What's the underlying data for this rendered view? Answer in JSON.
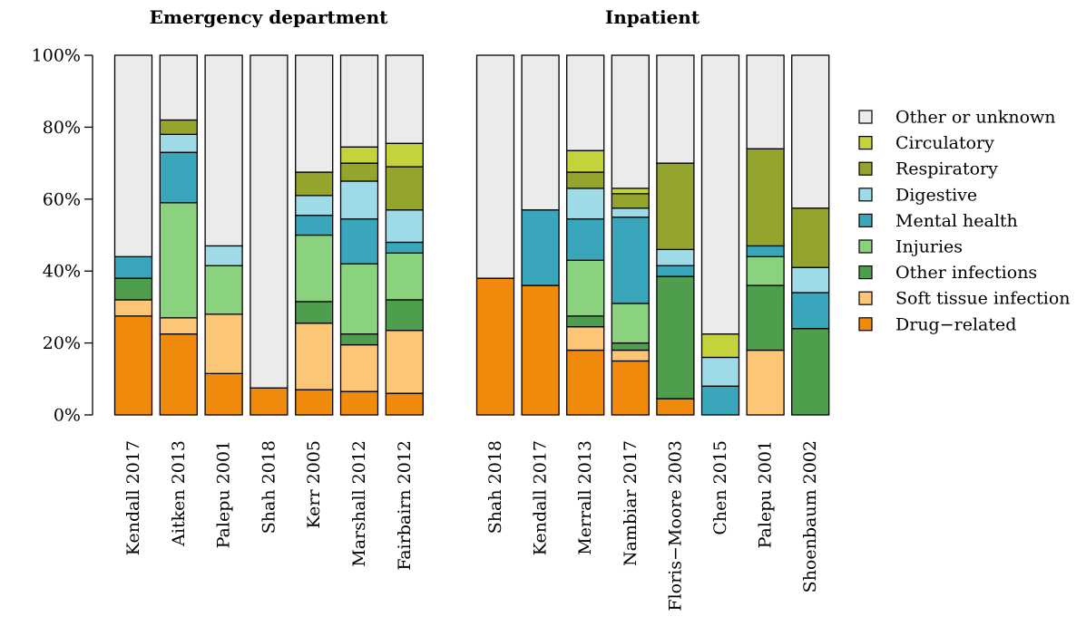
{
  "chart_data": [
    {
      "type": "bar",
      "stacked": true,
      "title": "Emergency department",
      "categories": [
        "Kendall 2017",
        "Aitken 2013",
        "Palepu 2001",
        "Shah 2018",
        "Kerr 2005",
        "Marshall 2012",
        "Fairbairn 2012"
      ],
      "series": [
        {
          "name": "Drug−related",
          "values": [
            27.5,
            22.5,
            11.5,
            7.5,
            7,
            6.5,
            6
          ]
        },
        {
          "name": "Soft tissue infection",
          "values": [
            4.5,
            4.5,
            16.5,
            0,
            18.5,
            13,
            17.5
          ]
        },
        {
          "name": "Other infections",
          "values": [
            6,
            0,
            0,
            0,
            6,
            3,
            8.5
          ]
        },
        {
          "name": "Injuries",
          "values": [
            0,
            32,
            13.5,
            0,
            18.5,
            19.5,
            13
          ]
        },
        {
          "name": "Mental health",
          "values": [
            6,
            14,
            0,
            0,
            5.5,
            12.5,
            3
          ]
        },
        {
          "name": "Digestive",
          "values": [
            0,
            5,
            5.5,
            0,
            5.5,
            10.5,
            9
          ]
        },
        {
          "name": "Respiratory",
          "values": [
            0,
            4,
            0,
            0,
            6.5,
            5,
            12
          ]
        },
        {
          "name": "Circulatory",
          "values": [
            0,
            0,
            0,
            0,
            0,
            4.5,
            6.5
          ]
        },
        {
          "name": "Other or unknown",
          "values": [
            56,
            18,
            53,
            92.5,
            32.5,
            25.5,
            24.5
          ]
        }
      ],
      "ylim": [
        0,
        100
      ],
      "yticks": [
        "0%",
        "20%",
        "40%",
        "60%",
        "80%",
        "100%"
      ]
    },
    {
      "type": "bar",
      "stacked": true,
      "title": "Inpatient",
      "categories": [
        "Shah 2018",
        "Kendall 2017",
        "Merrall 2013",
        "Nambiar 2017",
        "Floris−Moore 2003",
        "Chen 2015",
        "Palepu 2001",
        "Shoenbaum 2002"
      ],
      "series": [
        {
          "name": "Drug−related",
          "values": [
            38,
            36,
            18,
            15,
            4.5,
            0,
            0,
            0
          ]
        },
        {
          "name": "Soft tissue infection",
          "values": [
            0,
            0,
            6.5,
            3,
            0,
            0,
            18,
            0
          ]
        },
        {
          "name": "Other infections",
          "values": [
            0,
            0,
            3,
            2,
            34,
            0,
            18,
            24
          ]
        },
        {
          "name": "Injuries",
          "values": [
            0,
            0,
            15.5,
            11,
            0,
            0,
            8,
            0
          ]
        },
        {
          "name": "Mental health",
          "values": [
            0,
            21,
            11.5,
            24,
            3,
            8,
            3,
            10
          ]
        },
        {
          "name": "Digestive",
          "values": [
            0,
            0,
            8.5,
            2.5,
            4.5,
            8,
            0,
            7
          ]
        },
        {
          "name": "Respiratory",
          "values": [
            0,
            0,
            4.5,
            4,
            24,
            0,
            27,
            16.5
          ]
        },
        {
          "name": "Circulatory",
          "values": [
            0,
            0,
            6,
            1.5,
            0,
            6.5,
            0,
            0
          ]
        },
        {
          "name": "Other or unknown",
          "values": [
            62,
            43,
            26.5,
            37,
            30,
            77.5,
            26,
            42.5
          ]
        }
      ],
      "ylim": [
        0,
        100
      ],
      "yticks": [
        "0%",
        "20%",
        "40%",
        "60%",
        "80%",
        "100%"
      ]
    }
  ],
  "legend": {
    "placement": "right",
    "entries": [
      {
        "name": "Other or unknown",
        "color": "#ebebeb"
      },
      {
        "name": "Circulatory",
        "color": "#c4d23c"
      },
      {
        "name": "Respiratory",
        "color": "#95a42c"
      },
      {
        "name": "Digestive",
        "color": "#9fdbe6"
      },
      {
        "name": "Mental health",
        "color": "#3aa6bb"
      },
      {
        "name": "Injuries",
        "color": "#8bd27e"
      },
      {
        "name": "Other infections",
        "color": "#4e9e4e"
      },
      {
        "name": "Soft tissue infection",
        "color": "#fbc676"
      },
      {
        "name": "Drug−related",
        "color": "#ef8a0c"
      }
    ]
  },
  "colors": {
    "Drug−related": "#ef8a0c",
    "Soft tissue infection": "#fbc676",
    "Other infections": "#4e9e4e",
    "Injuries": "#8bd27e",
    "Mental health": "#3aa6bb",
    "Digestive": "#9fdbe6",
    "Respiratory": "#95a42c",
    "Circulatory": "#c4d23c",
    "Other or unknown": "#ebebeb"
  }
}
